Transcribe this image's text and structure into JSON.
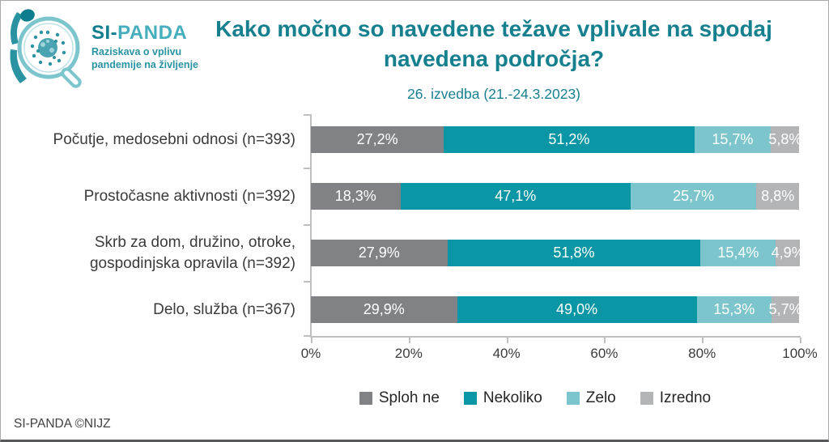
{
  "logo": {
    "brand_part1": "SI-",
    "brand_part2": "PANDA",
    "tagline_line1": "Raziskava o vplivu",
    "tagline_line2": "pandemije na življenje"
  },
  "header": {
    "title": "Kako močno so navedene težave vplivale na spodaj navedena področja?",
    "subtitle": "26. izvedba (21.-24.3.2023)"
  },
  "footer": {
    "credit": "SI-PANDA ©NIJZ"
  },
  "colors": {
    "title_teal": "#17808f",
    "brand_dark_teal": "#0e7d8d",
    "brand_light_teal": "#45aebc",
    "axis_gray": "#bfbfbf",
    "value_label": "#ffffff"
  },
  "chart_data": {
    "type": "bar",
    "orientation": "horizontal_stacked",
    "title": "Kako močno so navedene težave vplivale na spodaj navedena področja?",
    "subtitle": "26. izvedba (21.-24.3.2023)",
    "categories": [
      "Počutje, medosebni odnosi (n=393)",
      "Prostočasne aktivnosti (n=392)",
      "Skrb za dom, družino, otroke, gospodinjska opravila (n=392)",
      "Delo, služba (n=367)"
    ],
    "series": [
      {
        "name": "Sploh ne",
        "color": "#808285",
        "values": [
          27.2,
          18.3,
          27.9,
          29.9
        ],
        "labels": [
          "27,2%",
          "18,3%",
          "27,9%",
          "29,9%"
        ]
      },
      {
        "name": "Nekoliko",
        "color": "#0a96a4",
        "values": [
          51.2,
          47.1,
          51.8,
          49.0
        ],
        "labels": [
          "51,2%",
          "47,1%",
          "51,8%",
          "49,0%"
        ]
      },
      {
        "name": "Zelo",
        "color": "#7cc5cc",
        "values": [
          15.7,
          25.7,
          15.4,
          15.3
        ],
        "labels": [
          "15,7%",
          "25,7%",
          "15,4%",
          "15,3%"
        ]
      },
      {
        "name": "Izredno",
        "color": "#b3b4b6",
        "values": [
          5.8,
          8.8,
          4.9,
          5.7
        ],
        "labels": [
          "5,8%",
          "8,8%",
          "4,9%",
          "5,7%"
        ]
      }
    ],
    "x_ticks": [
      "0%",
      "20%",
      "40%",
      "60%",
      "80%",
      "100%"
    ],
    "xlim": [
      0,
      100
    ],
    "grid": false,
    "legend_position": "bottom"
  }
}
